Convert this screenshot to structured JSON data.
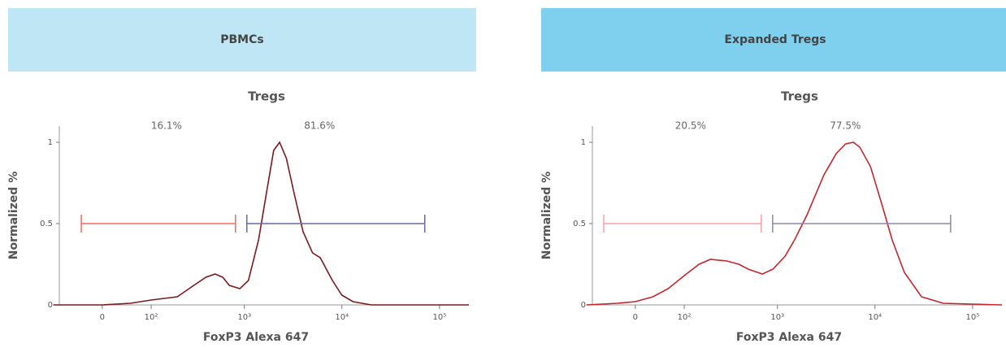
{
  "chart_data": [
    {
      "type": "line",
      "title": "PBMCs",
      "banner_color": "#bfe6f5",
      "subtitle": "Tregs",
      "x_label": "FoxP3 Alexa 647",
      "y_label": "Normalized %",
      "xscale": "biexponential",
      "x": [
        -100,
        0,
        50,
        100,
        200,
        300,
        400,
        500,
        600,
        700,
        900,
        1100,
        1400,
        1700,
        2000,
        2300,
        2700,
        3200,
        4000,
        5000,
        6000,
        8000,
        10000,
        13000,
        20000,
        50000,
        200000
      ],
      "values": [
        0,
        0,
        0.01,
        0.03,
        0.05,
        0.12,
        0.17,
        0.19,
        0.17,
        0.12,
        0.1,
        0.15,
        0.4,
        0.7,
        0.95,
        1.0,
        0.9,
        0.7,
        0.45,
        0.32,
        0.29,
        0.15,
        0.06,
        0.02,
        0,
        0,
        0
      ],
      "color": "#7a1a1e",
      "xlim": [
        -90,
        200000
      ],
      "ylim": [
        0,
        1.1
      ],
      "xticks": [
        0,
        {
          "value": 100,
          "label": "10²"
        },
        {
          "value": 1000,
          "label": "10³"
        },
        {
          "value": 10000,
          "label": "10⁴"
        },
        {
          "value": 100000,
          "label": "10⁵"
        }
      ],
      "yticks": [
        0,
        0.5,
        1
      ],
      "gates": {
        "y": 0.5,
        "ranges": [
          [
            -36,
            810
          ],
          [
            1060,
            70700
          ]
        ],
        "values": [
          16.1,
          81.6
        ],
        "value_labels": [
          "16.1%",
          "81.6%"
        ],
        "colors": [
          "#ef6a5a",
          "#6a6a9e"
        ]
      }
    },
    {
      "type": "line",
      "title": "Expanded Tregs",
      "banner_color": "#7fd0ef",
      "subtitle": "Tregs",
      "x_label": "FoxP3 Alexa 647",
      "y_label": "Normalized %",
      "xscale": "biexponential",
      "x": [
        -100,
        -30,
        0,
        30,
        60,
        100,
        150,
        200,
        300,
        400,
        500,
        700,
        900,
        1200,
        1500,
        2000,
        3000,
        4000,
        5000,
        6000,
        7000,
        9000,
        12000,
        15000,
        20000,
        30000,
        50000,
        200000
      ],
      "values": [
        0,
        0.01,
        0.02,
        0.05,
        0.1,
        0.18,
        0.25,
        0.28,
        0.27,
        0.25,
        0.22,
        0.19,
        0.22,
        0.3,
        0.4,
        0.55,
        0.8,
        0.93,
        0.99,
        1.0,
        0.97,
        0.85,
        0.6,
        0.4,
        0.2,
        0.05,
        0.01,
        0
      ],
      "color": "#c4262c",
      "xlim": [
        -90,
        200000
      ],
      "ylim": [
        0,
        1.1
      ],
      "xticks": [
        0,
        {
          "value": 100,
          "label": "10²"
        },
        {
          "value": 1000,
          "label": "10³"
        },
        {
          "value": 10000,
          "label": "10⁴"
        },
        {
          "value": 100000,
          "label": "10⁵"
        }
      ],
      "yticks": [
        0,
        0.5,
        1
      ],
      "gates": {
        "y": 0.5,
        "ranges": [
          [
            -57,
            681
          ],
          [
            893,
            59600
          ]
        ],
        "values": [
          20.5,
          77.5
        ],
        "value_labels": [
          "20.5%",
          "77.5%"
        ],
        "colors": [
          "#f4a0a0",
          "#8888ac"
        ]
      }
    }
  ]
}
